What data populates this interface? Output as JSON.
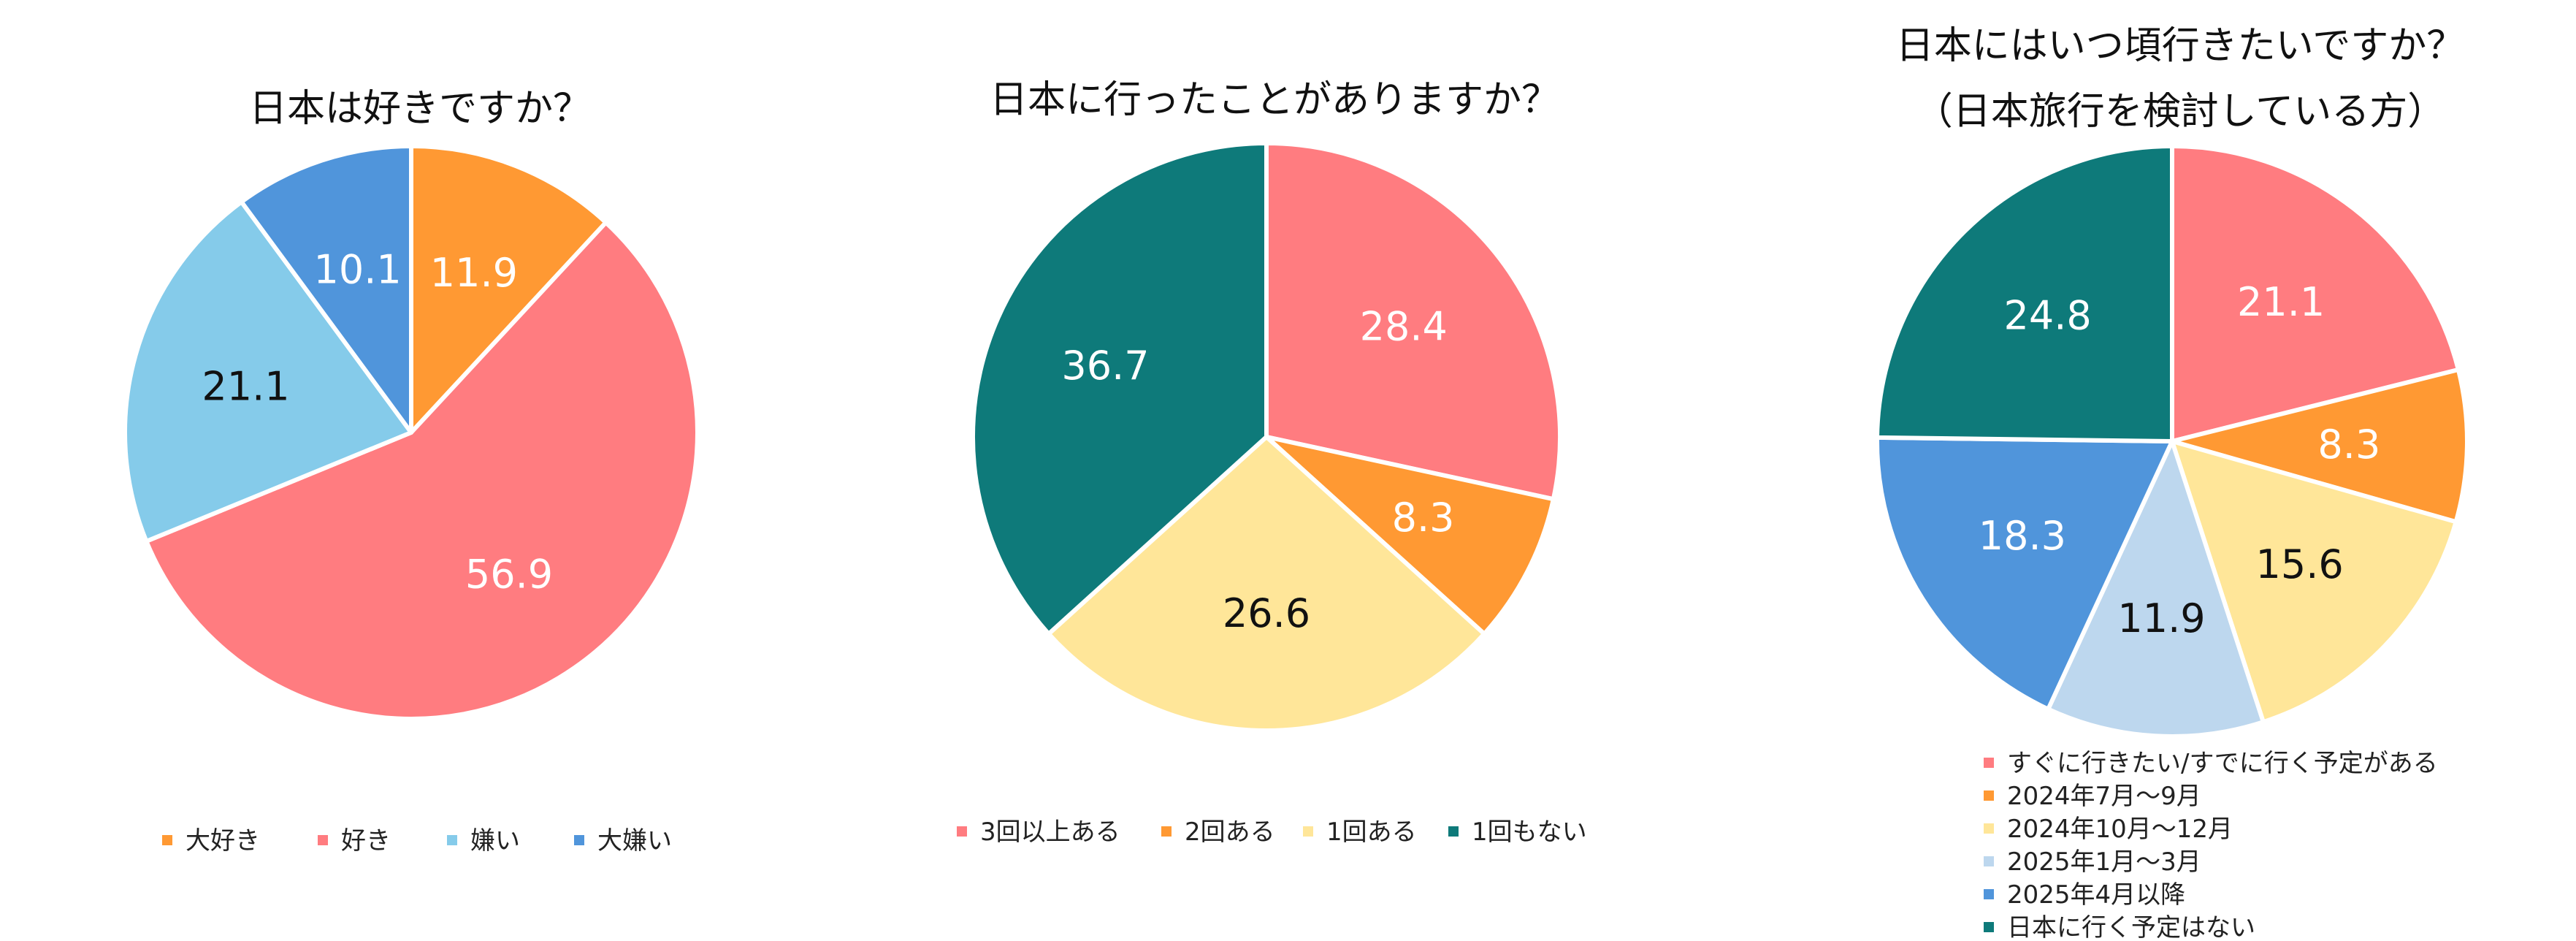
{
  "chart_data": [
    {
      "type": "pie",
      "title": [
        "日本は好きですか？"
      ],
      "categories": [
        "大好き",
        "好き",
        "嫌い",
        "大嫌い"
      ],
      "values": [
        11.9,
        56.9,
        21.1,
        10.1
      ],
      "colors": [
        "#FF9933",
        "#FF7C80",
        "#85CBEA",
        "#5095DB"
      ],
      "label_colors": [
        "#ffffff",
        "#ffffff",
        "#111111",
        "#ffffff"
      ],
      "legend": "bottom"
    },
    {
      "type": "pie",
      "title": [
        "日本に行ったことがありますか？"
      ],
      "categories": [
        "3回以上ある",
        "2回ある",
        "1回ある",
        "1回もない"
      ],
      "values": [
        28.4,
        8.3,
        26.6,
        36.7
      ],
      "colors": [
        "#FF7C80",
        "#FF9933",
        "#FFE699",
        "#0E7A7A"
      ],
      "label_colors": [
        "#ffffff",
        "#ffffff",
        "#111111",
        "#ffffff"
      ],
      "legend": "bottom"
    },
    {
      "type": "pie",
      "title": [
        "日本にはいつ頃行きたいですか？",
        "（日本旅行を検討している方）"
      ],
      "categories": [
        "すぐに行きたい/すでに行く予定がある",
        "2024年7月～9月",
        "2024年10月～12月",
        "2025年1月～3月",
        "2025年4月以降",
        "日本に行く予定はない"
      ],
      "values": [
        21.1,
        8.3,
        15.6,
        11.9,
        18.3,
        24.8
      ],
      "colors": [
        "#FF7C80",
        "#FF9933",
        "#FFE699",
        "#BDD7EE",
        "#5095DB",
        "#0E7A7A"
      ],
      "label_colors": [
        "#ffffff",
        "#ffffff",
        "#111111",
        "#111111",
        "#ffffff",
        "#ffffff"
      ],
      "legend": "bottom"
    }
  ]
}
